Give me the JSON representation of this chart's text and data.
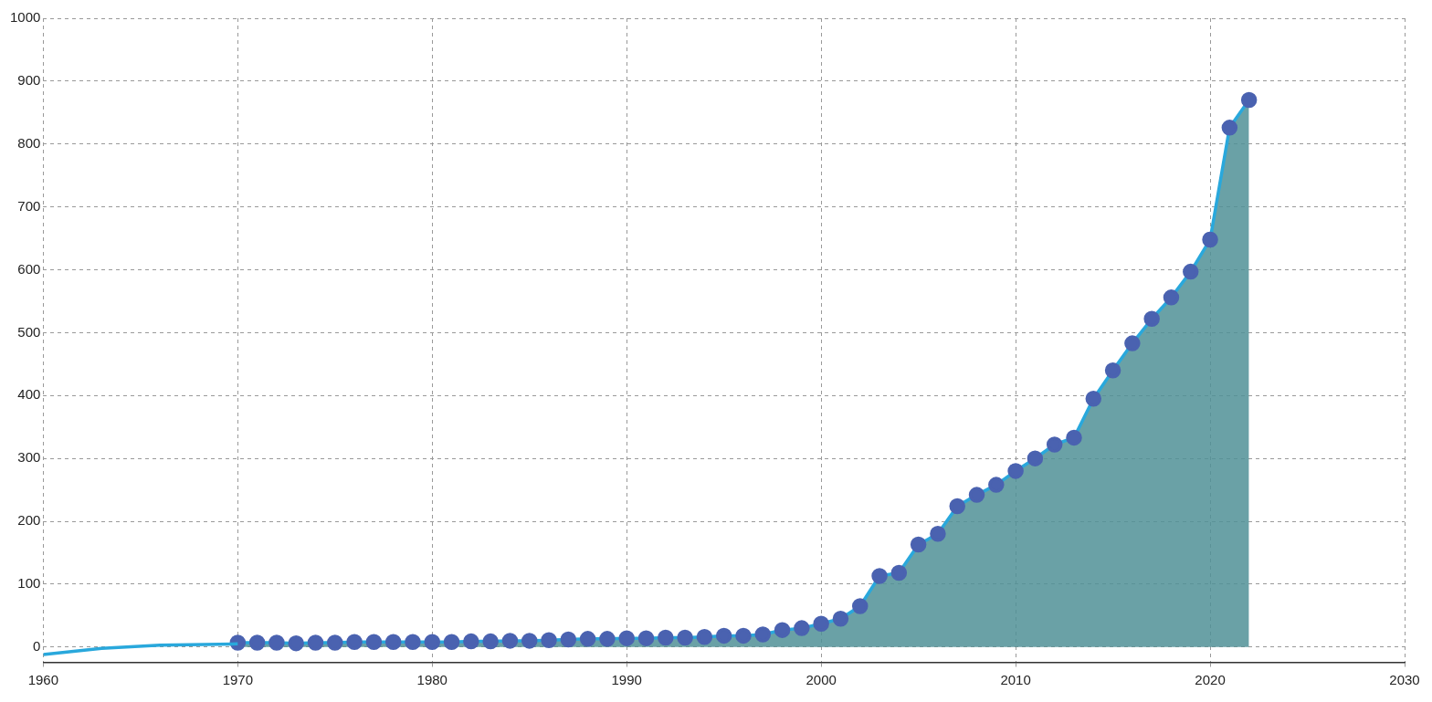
{
  "chart_data": {
    "type": "area",
    "xlim": [
      1960,
      2030
    ],
    "xticks": [
      1960,
      1970,
      1980,
      1990,
      2000,
      2010,
      2020,
      2030
    ],
    "ylim": [
      -25,
      1000
    ],
    "yticks": [
      0,
      100,
      200,
      300,
      400,
      500,
      600,
      700,
      800,
      900,
      1000
    ],
    "grid": true,
    "legend": false,
    "series": [
      {
        "type": "line",
        "marker": "none",
        "color": "#29a8dc",
        "x": [
          1960,
          1963,
          1966,
          1970
        ],
        "values": [
          -12,
          -2,
          3,
          5
        ]
      },
      {
        "marker": "circle",
        "color": "#4a62b0",
        "x": [
          1970,
          1971,
          1972,
          1973,
          1974,
          1975,
          1976,
          1977,
          1978,
          1979,
          1980,
          1981,
          1982,
          1983,
          1984,
          1985,
          1986,
          1987,
          1988,
          1989,
          1990,
          1991,
          1992,
          1993,
          1994,
          1995,
          1996,
          1997,
          1998,
          1999,
          2000,
          2001,
          2002,
          2003,
          2004,
          2005,
          2006,
          2007,
          2008,
          2009,
          2010,
          2011,
          2012,
          2013,
          2014,
          2015,
          2016,
          2017,
          2018,
          2019,
          2020,
          2021,
          2022
        ],
        "values": [
          7,
          7,
          7,
          6,
          7,
          7,
          8,
          8,
          8,
          8,
          8,
          8,
          9,
          9,
          10,
          10,
          11,
          12,
          13,
          13,
          14,
          14,
          15,
          15,
          16,
          18,
          18,
          20,
          27,
          30,
          37,
          45,
          65,
          113,
          118,
          163,
          180,
          224,
          242,
          258,
          280,
          300,
          322,
          333,
          395,
          440,
          483,
          522,
          556,
          597,
          648,
          826,
          870
        ]
      }
    ]
  }
}
